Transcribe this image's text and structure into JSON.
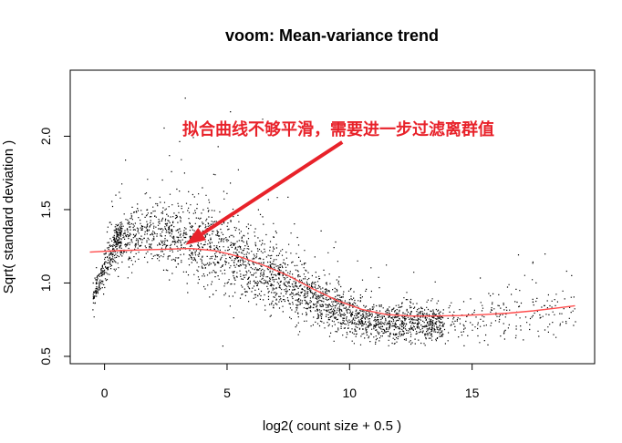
{
  "chart_data": {
    "type": "scatter",
    "title": "voom: Mean-variance trend",
    "xlabel": "log2( count size + 0.5 )",
    "ylabel": "Sqrt( standard deviation )",
    "xlim": [
      -1.4,
      20.0
    ],
    "ylim": [
      0.45,
      2.45
    ],
    "xticks": [
      0,
      5,
      10,
      15
    ],
    "yticks": [
      0.5,
      1.0,
      1.5,
      2.0
    ],
    "xtick_labels": [
      "0",
      "5",
      "10",
      "15"
    ],
    "ytick_labels": [
      "0.5",
      "1.0",
      "1.5",
      "2.0"
    ],
    "grid": false,
    "legend": "none",
    "point_color": "#000000",
    "trend_color": "#ff4d4d",
    "annotation_color": "#e8222a",
    "trend": {
      "x": [
        -0.6,
        0.5,
        1.5,
        2.5,
        3.5,
        4.5,
        5.5,
        6.5,
        7.5,
        8.5,
        9.5,
        10.5,
        11.5,
        12.5,
        13.5,
        14.5,
        15.5,
        16.5,
        17.5,
        18.5,
        19.2
      ],
      "y": [
        1.21,
        1.22,
        1.225,
        1.23,
        1.235,
        1.22,
        1.18,
        1.12,
        1.05,
        0.96,
        0.88,
        0.82,
        0.785,
        0.775,
        0.775,
        0.778,
        0.785,
        0.795,
        0.81,
        0.83,
        0.845
      ]
    },
    "point_cloud": {
      "description_samples": "dense black point cloud of per-gene sqrt(sd) vs log2 count",
      "envelope": {
        "x": [
          -0.5,
          0.5,
          1.5,
          2.5,
          3.5,
          4.5,
          5.5,
          6.5,
          7.5,
          8.5,
          9.5,
          10.5,
          11.5,
          12.5,
          13.5,
          14.5,
          15.5,
          16.5,
          17.5,
          18.5,
          19.2
        ],
        "center": [
          0.9,
          1.3,
          1.33,
          1.32,
          1.28,
          1.22,
          1.15,
          1.08,
          1.0,
          0.9,
          0.82,
          0.76,
          0.73,
          0.72,
          0.73,
          0.74,
          0.76,
          0.78,
          0.8,
          0.82,
          0.84
        ],
        "spread": [
          0.08,
          0.12,
          0.16,
          0.2,
          0.22,
          0.22,
          0.21,
          0.2,
          0.18,
          0.16,
          0.13,
          0.1,
          0.1,
          0.1,
          0.11,
          0.12,
          0.14,
          0.16,
          0.17,
          0.18,
          0.18
        ]
      }
    },
    "annotation": {
      "text": "拟合曲线不够平滑，需要进一步过滤离群值",
      "arrow_from": [
        9.7,
        1.96
      ],
      "arrow_to": [
        3.3,
        1.26
      ]
    }
  }
}
